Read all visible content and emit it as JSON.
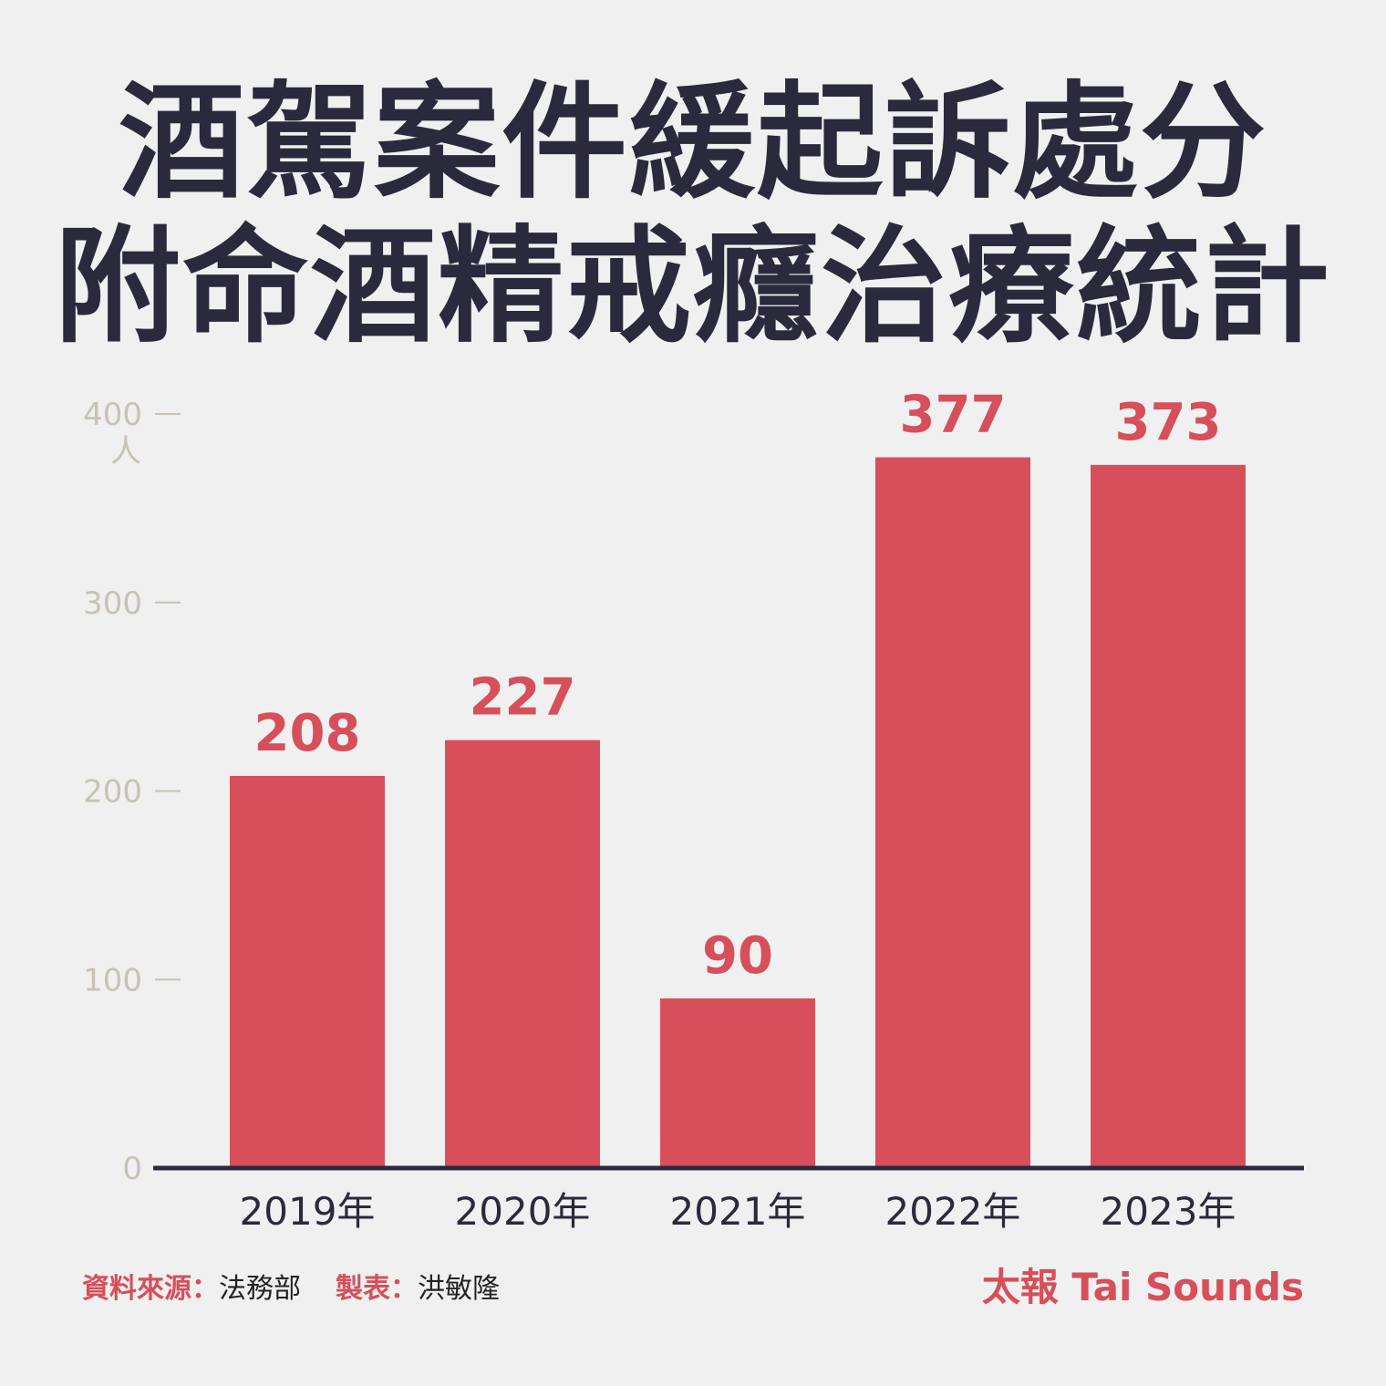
{
  "header": {
    "title_line1": "酒駕案件緩起訴處分",
    "title_line2": "附命酒精戒癮治療統計"
  },
  "chart_data": {
    "type": "bar",
    "title": "酒駕案件緩起訴處分附命酒精戒癮治療統計",
    "categories": [
      "2019年",
      "2020年",
      "2021年",
      "2022年",
      "2023年"
    ],
    "values": [
      208,
      227,
      90,
      377,
      373
    ],
    "ylabel": "人",
    "ylim": [
      0,
      400
    ],
    "yticks": [
      0,
      100,
      200,
      300,
      400
    ],
    "grid": false,
    "legend": "none",
    "bar_color": "#d64f5b",
    "axis_color": "#2a2a3c",
    "tick_color": "#c8c2b6"
  },
  "footer": {
    "source_label": "資料來源：",
    "source_value": "法務部",
    "maker_label": "製表：",
    "maker_value": "洪敏隆",
    "brand": "太報 Tai Sounds"
  }
}
